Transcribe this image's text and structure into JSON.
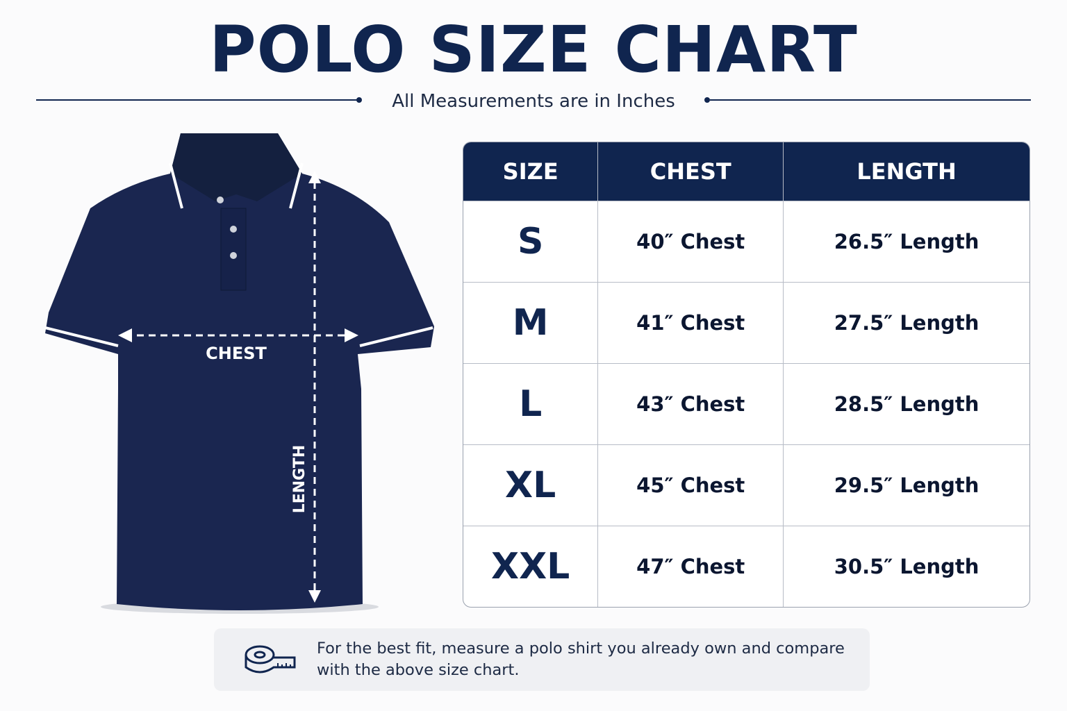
{
  "header": {
    "title": "POLO SIZE CHART",
    "subtitle": "All Measurements are in Inches"
  },
  "illustration": {
    "chest_label": "CHEST",
    "length_label": "LENGTH"
  },
  "table": {
    "headers": [
      "SIZE",
      "CHEST",
      "LENGTH"
    ],
    "rows": [
      [
        "S",
        "40″ Chest",
        "26.5″ Length"
      ],
      [
        "M",
        "41″ Chest",
        "27.5″ Length"
      ],
      [
        "L",
        "43″ Chest",
        "28.5″ Length"
      ],
      [
        "XL",
        "45″ Chest",
        "29.5″ Length"
      ],
      [
        "XXL",
        "47″ Chest",
        "30.5″ Length"
      ]
    ]
  },
  "footer": {
    "note": "For the best fit, measure a polo shirt you already own and compare with the above size chart."
  }
}
